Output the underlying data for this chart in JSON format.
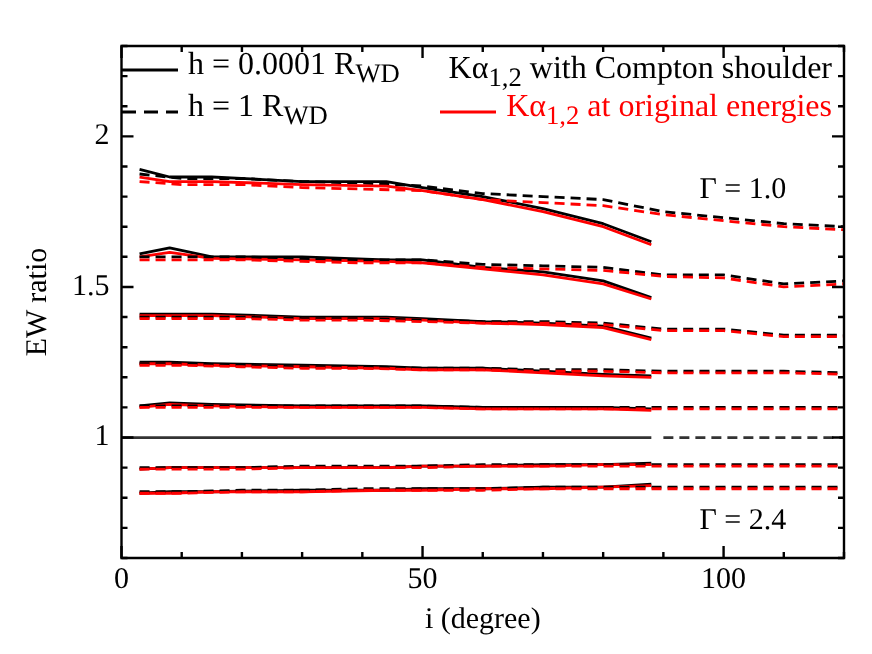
{
  "chart_data": {
    "type": "line",
    "xlabel": "i (degree)",
    "ylabel": "EW ratio",
    "xlim": [
      0,
      120
    ],
    "ylim": [
      0.6,
      2.3
    ],
    "xticks": [
      0,
      {
        "value": 10,
        "label": null
      },
      {
        "value": 20,
        "label": null
      },
      {
        "value": 30,
        "label": null
      },
      {
        "value": 40,
        "label": null
      },
      50,
      {
        "value": 60,
        "label": null
      },
      {
        "value": 70,
        "label": null
      },
      {
        "value": 80,
        "label": null
      },
      {
        "value": 90,
        "label": null
      },
      100,
      {
        "value": 110,
        "label": null
      },
      {
        "value": 120,
        "label": null
      }
    ],
    "yticks": [
      {
        "value": 0.6,
        "label": null
      },
      {
        "value": 0.7,
        "label": null
      },
      {
        "value": 0.8,
        "label": null
      },
      {
        "value": 0.9,
        "label": null
      },
      1,
      {
        "value": 1.1,
        "label": null
      },
      {
        "value": 1.2,
        "label": null
      },
      {
        "value": 1.3,
        "label": null
      },
      {
        "value": 1.4,
        "label": null
      },
      1.5,
      {
        "value": 1.6,
        "label": null
      },
      {
        "value": 1.7,
        "label": null
      },
      {
        "value": 1.8,
        "label": null
      },
      {
        "value": 1.9,
        "label": null
      },
      2,
      {
        "value": 2.1,
        "label": null
      },
      {
        "value": 2.2,
        "label": null
      },
      {
        "value": 2.3,
        "label": null
      }
    ],
    "grid": false,
    "legend": "top left",
    "line_style": "solid",
    "marker": "none",
    "annotations": [
      "Kα$_{1,2}$ with Compton shoulder",
      "Γ = 1.0",
      "Γ = 2.4"
    ],
    "series": [
      {
        "name": "h = 0.0001 R$_{WD}$",
        "color": "#000000",
        "x": [
          3,
          8,
          15,
          30,
          44,
          50,
          60,
          70,
          80,
          88
        ],
        "values": [
          1.89,
          1.865,
          1.865,
          1.85,
          1.85,
          1.83,
          1.8,
          1.76,
          1.71,
          1.65
        ]
      },
      {
        "name": "h = 1 R$_{WD}$",
        "color": "#000000",
        "line_style": "dashed",
        "x": [
          3,
          10,
          20,
          30,
          40,
          50,
          60,
          70,
          80,
          90,
          100,
          110,
          120
        ],
        "values": [
          1.875,
          1.86,
          1.86,
          1.85,
          1.845,
          1.835,
          1.81,
          1.8,
          1.79,
          1.75,
          1.73,
          1.71,
          1.7
        ]
      },
      {
        "name": "Kα$_{1,2}$ at original energies",
        "color": "#ff0000",
        "x": [
          3,
          8,
          15,
          30,
          44,
          50,
          60,
          70,
          80,
          88
        ],
        "values": [
          1.865,
          1.85,
          1.85,
          1.84,
          1.835,
          1.82,
          1.79,
          1.75,
          1.7,
          1.64
        ]
      },
      {
        "color": "#ff0000",
        "line_style": "dashed",
        "x": [
          3,
          10,
          20,
          30,
          40,
          50,
          60,
          70,
          80,
          90,
          100,
          110,
          120
        ],
        "values": [
          1.85,
          1.84,
          1.84,
          1.83,
          1.825,
          1.82,
          1.79,
          1.78,
          1.77,
          1.74,
          1.72,
          1.7,
          1.69
        ]
      },
      {
        "color": "#000000",
        "x": [
          3,
          8,
          15,
          30,
          44,
          50,
          60,
          70,
          80,
          88
        ],
        "values": [
          1.61,
          1.63,
          1.6,
          1.6,
          1.59,
          1.59,
          1.565,
          1.55,
          1.52,
          1.465
        ]
      },
      {
        "color": "#ff0000",
        "x": [
          3,
          8,
          15,
          30,
          44,
          50,
          60,
          70,
          80,
          88
        ],
        "values": [
          1.6,
          1.615,
          1.595,
          1.59,
          1.585,
          1.58,
          1.56,
          1.54,
          1.51,
          1.46
        ]
      },
      {
        "color": "#000000",
        "line_style": "dashed",
        "x": [
          3,
          10,
          20,
          30,
          40,
          50,
          60,
          70,
          80,
          90,
          100,
          110,
          120
        ],
        "values": [
          1.6,
          1.6,
          1.6,
          1.595,
          1.59,
          1.59,
          1.575,
          1.57,
          1.565,
          1.54,
          1.54,
          1.51,
          1.52
        ]
      },
      {
        "color": "#ff0000",
        "line_style": "dashed",
        "x": [
          3,
          10,
          20,
          30,
          40,
          50,
          60,
          70,
          80,
          90,
          100,
          110,
          120
        ],
        "values": [
          1.59,
          1.59,
          1.59,
          1.585,
          1.58,
          1.58,
          1.565,
          1.56,
          1.555,
          1.535,
          1.53,
          1.5,
          1.51
        ]
      },
      {
        "color": "#000000",
        "x": [
          3,
          8,
          15,
          30,
          44,
          50,
          60,
          70,
          80,
          88
        ],
        "values": [
          1.41,
          1.41,
          1.41,
          1.4,
          1.4,
          1.395,
          1.385,
          1.38,
          1.37,
          1.33
        ]
      },
      {
        "color": "#ff0000",
        "x": [
          3,
          8,
          15,
          30,
          44,
          50,
          60,
          70,
          80,
          88
        ],
        "values": [
          1.405,
          1.405,
          1.405,
          1.395,
          1.395,
          1.39,
          1.38,
          1.375,
          1.365,
          1.325
        ]
      },
      {
        "color": "#000000",
        "line_style": "dashed",
        "x": [
          3,
          10,
          20,
          30,
          40,
          50,
          60,
          70,
          80,
          90,
          100,
          110,
          120
        ],
        "values": [
          1.4,
          1.4,
          1.4,
          1.395,
          1.395,
          1.39,
          1.385,
          1.385,
          1.38,
          1.36,
          1.36,
          1.34,
          1.34
        ]
      },
      {
        "color": "#ff0000",
        "line_style": "dashed",
        "x": [
          3,
          10,
          20,
          30,
          40,
          50,
          60,
          70,
          80,
          90,
          100,
          110,
          120
        ],
        "values": [
          1.395,
          1.395,
          1.395,
          1.39,
          1.39,
          1.385,
          1.38,
          1.38,
          1.375,
          1.355,
          1.355,
          1.335,
          1.335
        ]
      },
      {
        "color": "#000000",
        "x": [
          3,
          8,
          15,
          30,
          44,
          50,
          60,
          70,
          80,
          88
        ],
        "values": [
          1.25,
          1.25,
          1.245,
          1.24,
          1.235,
          1.23,
          1.23,
          1.22,
          1.21,
          1.205
        ]
      },
      {
        "color": "#ff0000",
        "x": [
          3,
          8,
          15,
          30,
          44,
          50,
          60,
          70,
          80,
          88
        ],
        "values": [
          1.245,
          1.245,
          1.24,
          1.235,
          1.23,
          1.225,
          1.225,
          1.215,
          1.205,
          1.2
        ]
      },
      {
        "color": "#000000",
        "line_style": "dashed",
        "x": [
          3,
          10,
          20,
          30,
          40,
          50,
          60,
          70,
          80,
          90,
          100,
          110,
          120
        ],
        "values": [
          1.245,
          1.245,
          1.24,
          1.235,
          1.235,
          1.23,
          1.23,
          1.225,
          1.225,
          1.22,
          1.22,
          1.22,
          1.215
        ]
      },
      {
        "color": "#ff0000",
        "line_style": "dashed",
        "x": [
          3,
          10,
          20,
          30,
          40,
          50,
          60,
          70,
          80,
          90,
          100,
          110,
          120
        ],
        "values": [
          1.24,
          1.24,
          1.235,
          1.23,
          1.23,
          1.225,
          1.225,
          1.22,
          1.22,
          1.215,
          1.215,
          1.215,
          1.21
        ]
      },
      {
        "color": "#000000",
        "x": [
          3,
          8,
          15,
          30,
          44,
          50,
          60,
          70,
          80,
          88
        ],
        "values": [
          1.105,
          1.115,
          1.11,
          1.105,
          1.105,
          1.105,
          1.1,
          1.1,
          1.1,
          1.095
        ]
      },
      {
        "color": "#ff0000",
        "x": [
          3,
          8,
          15,
          30,
          44,
          50,
          60,
          70,
          80,
          88
        ],
        "values": [
          1.1,
          1.11,
          1.105,
          1.1,
          1.1,
          1.1,
          1.095,
          1.095,
          1.095,
          1.09
        ]
      },
      {
        "color": "#000000",
        "line_style": "dashed",
        "x": [
          3,
          10,
          20,
          30,
          40,
          50,
          60,
          70,
          80,
          90,
          100,
          110,
          120
        ],
        "values": [
          1.105,
          1.105,
          1.105,
          1.105,
          1.105,
          1.105,
          1.1,
          1.1,
          1.1,
          1.1,
          1.1,
          1.1,
          1.1
        ]
      },
      {
        "color": "#ff0000",
        "line_style": "dashed",
        "x": [
          3,
          10,
          20,
          30,
          40,
          50,
          60,
          70,
          80,
          90,
          100,
          110,
          120
        ],
        "values": [
          1.1,
          1.1,
          1.1,
          1.1,
          1.1,
          1.1,
          1.095,
          1.095,
          1.095,
          1.095,
          1.095,
          1.095,
          1.095
        ]
      },
      {
        "color": "#333333",
        "x": [
          0,
          88
        ],
        "values": [
          1,
          1
        ]
      },
      {
        "color": "#333333",
        "line_style": "dashed",
        "x": [
          90,
          120
        ],
        "values": [
          1,
          1
        ]
      },
      {
        "color": "#000000",
        "x": [
          3,
          8,
          15,
          30,
          44,
          50,
          60,
          70,
          80,
          88
        ],
        "values": [
          0.895,
          0.9,
          0.9,
          0.9,
          0.9,
          0.905,
          0.905,
          0.91,
          0.91,
          0.915
        ]
      },
      {
        "color": "#ff0000",
        "x": [
          3,
          8,
          15,
          30,
          44,
          50,
          60,
          70,
          80,
          88
        ],
        "values": [
          0.895,
          0.9,
          0.9,
          0.9,
          0.9,
          0.905,
          0.905,
          0.905,
          0.91,
          0.91
        ]
      },
      {
        "color": "#000000",
        "line_style": "dashed",
        "x": [
          3,
          10,
          20,
          30,
          40,
          50,
          60,
          70,
          80,
          90,
          100,
          110,
          120
        ],
        "values": [
          0.9,
          0.9,
          0.9,
          0.905,
          0.905,
          0.905,
          0.91,
          0.91,
          0.91,
          0.91,
          0.91,
          0.91,
          0.91
        ]
      },
      {
        "color": "#ff0000",
        "line_style": "dashed",
        "x": [
          3,
          10,
          20,
          30,
          40,
          50,
          60,
          70,
          80,
          90,
          100,
          110,
          120
        ],
        "values": [
          0.895,
          0.895,
          0.895,
          0.9,
          0.9,
          0.9,
          0.905,
          0.905,
          0.905,
          0.905,
          0.905,
          0.905,
          0.905
        ]
      },
      {
        "color": "#000000",
        "x": [
          3,
          8,
          15,
          30,
          44,
          50,
          60,
          70,
          80,
          88
        ],
        "values": [
          0.815,
          0.82,
          0.82,
          0.825,
          0.825,
          0.83,
          0.83,
          0.835,
          0.835,
          0.845
        ]
      },
      {
        "color": "#ff0000",
        "x": [
          3,
          8,
          15,
          30,
          44,
          50,
          60,
          70,
          80,
          88
        ],
        "values": [
          0.815,
          0.815,
          0.82,
          0.82,
          0.825,
          0.825,
          0.83,
          0.83,
          0.835,
          0.84
        ]
      },
      {
        "color": "#000000",
        "line_style": "dashed",
        "x": [
          3,
          10,
          20,
          30,
          40,
          50,
          60,
          70,
          80,
          90,
          100,
          110,
          120
        ],
        "values": [
          0.82,
          0.82,
          0.825,
          0.825,
          0.83,
          0.83,
          0.83,
          0.835,
          0.835,
          0.835,
          0.835,
          0.835,
          0.835
        ]
      },
      {
        "color": "#ff0000",
        "line_style": "dashed",
        "x": [
          3,
          10,
          20,
          30,
          40,
          50,
          60,
          70,
          80,
          90,
          100,
          110,
          120
        ],
        "values": [
          0.815,
          0.815,
          0.82,
          0.82,
          0.825,
          0.825,
          0.825,
          0.83,
          0.83,
          0.83,
          0.83,
          0.83,
          0.83
        ]
      }
    ]
  }
}
